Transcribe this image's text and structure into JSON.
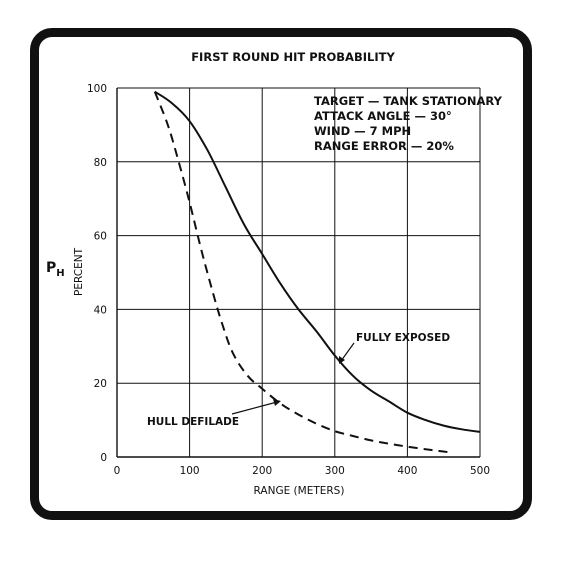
{
  "chart_data": {
    "type": "line",
    "title": "FIRST ROUND HIT PROBABILITY",
    "xlabel": "RANGE (METERS)",
    "ylabel_symbol": "P",
    "ylabel_subscript": "H",
    "ylabel_unit": "PERCENT",
    "xlim": [
      0,
      500
    ],
    "ylim": [
      0,
      100
    ],
    "xticks": [
      0,
      100,
      200,
      300,
      400,
      500
    ],
    "yticks": [
      0,
      20,
      40,
      60,
      80,
      100
    ],
    "grid": true,
    "annotations": [
      "TARGET — TANK STATIONARY",
      "ATTACK ANGLE — 30°",
      "WIND — 7 MPH",
      "RANGE ERROR — 20%"
    ],
    "series": [
      {
        "name": "FULLY EXPOSED",
        "style": "solid",
        "x": [
          52,
          75,
          100,
          125,
          150,
          175,
          200,
          225,
          250,
          275,
          300,
          325,
          350,
          375,
          400,
          425,
          450,
          475,
          500
        ],
        "y": [
          99,
          96,
          91,
          83,
          73,
          63,
          55,
          47,
          40,
          34,
          27.5,
          22,
          18,
          15,
          12,
          10,
          8.5,
          7.5,
          6.8
        ]
      },
      {
        "name": "HULL DEFILADE",
        "style": "dashed",
        "x": [
          52,
          70,
          85,
          100,
          115,
          130,
          145,
          160,
          180,
          200,
          225,
          250,
          275,
          300,
          325,
          350,
          375,
          400,
          425,
          445,
          460
        ],
        "y": [
          99,
          90,
          80,
          69,
          57,
          46,
          36,
          28,
          22,
          18.5,
          14.5,
          11.5,
          9,
          7,
          5.7,
          4.5,
          3.6,
          2.8,
          2.1,
          1.6,
          1.2
        ]
      }
    ]
  }
}
